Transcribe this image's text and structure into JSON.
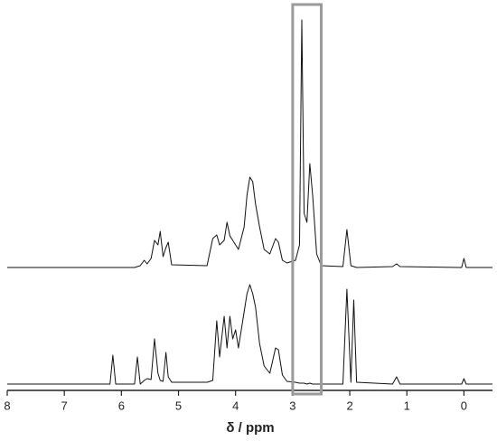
{
  "chart_data": {
    "type": "line",
    "x_label": "δ / ppm",
    "xlim": [
      8,
      -0.5
    ],
    "xticks": [
      8,
      7,
      6,
      5,
      4,
      3,
      2,
      1,
      0
    ],
    "highlight_range": [
      3.0,
      2.5
    ],
    "highlight_color": "#9a9a9a",
    "x": [
      8.0,
      6.2,
      6.15,
      6.1,
      5.77,
      5.72,
      5.67,
      5.6,
      5.55,
      5.48,
      5.42,
      5.36,
      5.32,
      5.27,
      5.22,
      5.18,
      5.12,
      4.5,
      4.4,
      4.33,
      4.28,
      4.2,
      4.15,
      4.1,
      4.05,
      4.0,
      3.95,
      3.85,
      3.8,
      3.75,
      3.7,
      3.65,
      3.58,
      3.5,
      3.4,
      3.3,
      3.25,
      3.18,
      3.1,
      2.95,
      2.88,
      2.84,
      2.8,
      2.75,
      2.7,
      2.65,
      2.58,
      2.5,
      2.12,
      2.05,
      1.98,
      1.93,
      1.88,
      1.25,
      1.18,
      1.12,
      0.04,
      0.0,
      -0.04,
      -0.5
    ],
    "series": [
      {
        "color": "#111111",
        "values": [
          0,
          0,
          0,
          0,
          0,
          1,
          2,
          8,
          4,
          10,
          30,
          25,
          40,
          12,
          22,
          28,
          3,
          2,
          32,
          36,
          25,
          30,
          50,
          35,
          30,
          25,
          20,
          45,
          80,
          100,
          95,
          70,
          45,
          20,
          15,
          32,
          28,
          8,
          5,
          8,
          25,
          274,
          60,
          50,
          115,
          80,
          15,
          2,
          1,
          42,
          2,
          1,
          0,
          1,
          4,
          1,
          0,
          10,
          0,
          0
        ]
      },
      {
        "color": "#111111",
        "values": [
          0,
          0,
          32,
          0,
          0,
          30,
          0,
          4,
          6,
          5,
          50,
          12,
          4,
          3,
          35,
          8,
          2,
          2,
          4,
          70,
          30,
          75,
          40,
          75,
          50,
          60,
          40,
          80,
          100,
          110,
          100,
          85,
          45,
          20,
          12,
          40,
          38,
          10,
          3,
          2,
          1,
          1,
          1,
          0,
          1,
          0,
          0,
          0,
          0,
          105,
          2,
          93,
          2,
          0,
          8,
          0,
          0,
          6,
          0,
          0
        ]
      }
    ]
  }
}
